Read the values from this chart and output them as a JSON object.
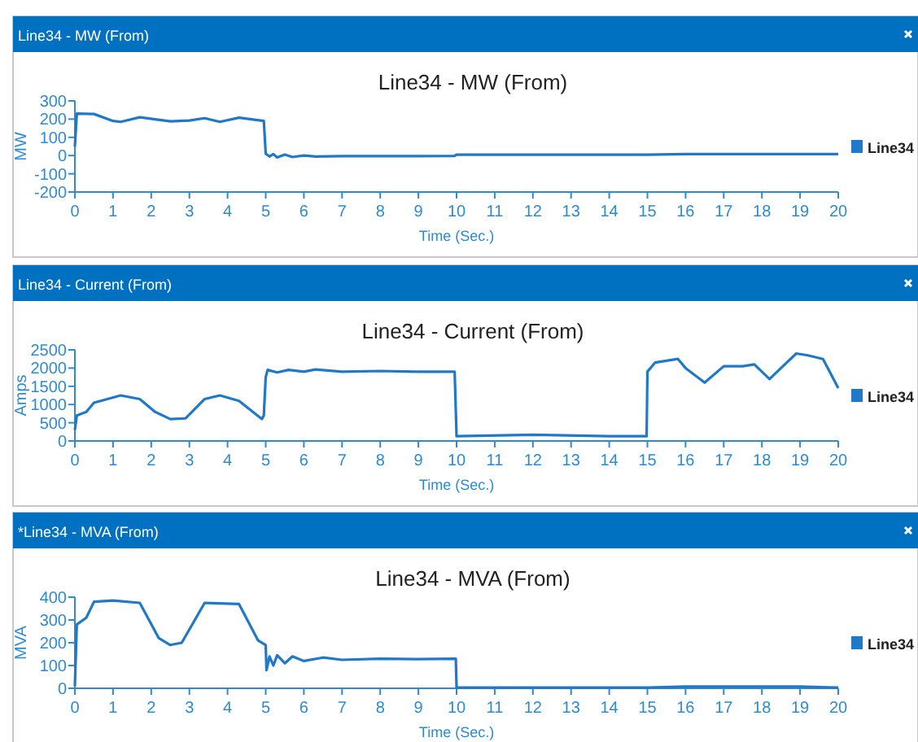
{
  "chart_data": [
    {
      "type": "line",
      "subtitle": "Line34 - MW (From)",
      "title": "Line34 - MW (From)",
      "xlabel": "Time (Sec.)",
      "ylabel": "MW",
      "xlim": [
        0,
        20
      ],
      "xticks": [
        0,
        1,
        2,
        3,
        4,
        5,
        6,
        7,
        8,
        9,
        10,
        11,
        12,
        13,
        14,
        15,
        16,
        17,
        18,
        19,
        20
      ],
      "ylim": [
        -200,
        300
      ],
      "yticks": [
        -200,
        -100,
        0,
        100,
        200,
        300
      ],
      "grid": false,
      "legend": "right",
      "marker": "none",
      "line_style": "solid",
      "series": [
        {
          "name": "Line34",
          "color": "#1f78c8",
          "x": [
            0,
            0.05,
            0.5,
            1,
            1.2,
            1.7,
            2.5,
            3,
            3.4,
            3.8,
            4.3,
            4.95,
            5,
            5.1,
            5.2,
            5.3,
            5.5,
            5.7,
            6,
            6.3,
            7,
            8,
            9,
            9.95,
            10,
            15,
            16,
            20
          ],
          "values": [
            50,
            230,
            228,
            190,
            185,
            210,
            188,
            192,
            205,
            185,
            208,
            190,
            10,
            -5,
            8,
            -10,
            5,
            -8,
            0,
            -5,
            -3,
            -3,
            -3,
            -2,
            5,
            5,
            8,
            8
          ]
        }
      ]
    },
    {
      "type": "line",
      "subtitle": "Line34 - Current (From)",
      "title": "Line34 - Current (From)",
      "xlabel": "Time (Sec.)",
      "ylabel": "Amps",
      "xlim": [
        0,
        20
      ],
      "xticks": [
        0,
        1,
        2,
        3,
        4,
        5,
        6,
        7,
        8,
        9,
        10,
        11,
        12,
        13,
        14,
        15,
        16,
        17,
        18,
        19,
        20
      ],
      "ylim": [
        0,
        2500
      ],
      "yticks": [
        0,
        500,
        1000,
        1500,
        2000,
        2500
      ],
      "grid": false,
      "legend": "right",
      "marker": "none",
      "line_style": "solid",
      "series": [
        {
          "name": "Line34",
          "color": "#1f78c8",
          "x": [
            0,
            0.05,
            0.3,
            0.5,
            1.2,
            1.7,
            2.1,
            2.5,
            2.9,
            3.4,
            3.8,
            4.3,
            4.9,
            4.95,
            5,
            5.05,
            5.3,
            5.6,
            6,
            6.3,
            7,
            8,
            9,
            9.95,
            10,
            12,
            14,
            14.98,
            15,
            15.2,
            15.5,
            15.8,
            16,
            16.5,
            17,
            17.5,
            17.8,
            18.2,
            18.5,
            18.9,
            19.2,
            19.6,
            20
          ],
          "values": [
            300,
            700,
            800,
            1050,
            1250,
            1150,
            800,
            600,
            620,
            1150,
            1250,
            1100,
            600,
            700,
            1750,
            1950,
            1880,
            1950,
            1900,
            1960,
            1900,
            1920,
            1900,
            1900,
            130,
            170,
            130,
            130,
            1900,
            2150,
            2200,
            2250,
            2000,
            1600,
            2050,
            2050,
            2100,
            1700,
            2000,
            2400,
            2350,
            2250,
            1450
          ]
        }
      ]
    },
    {
      "type": "line",
      "subtitle": "*Line34 - MVA (From)",
      "title": "Line34 - MVA (From)",
      "xlabel": "Time (Sec.)",
      "ylabel": "MVA",
      "xlim": [
        0,
        20
      ],
      "xticks": [
        0,
        1,
        2,
        3,
        4,
        5,
        6,
        7,
        8,
        9,
        10,
        11,
        12,
        13,
        14,
        15,
        16,
        17,
        18,
        19,
        20
      ],
      "ylim": [
        0,
        400
      ],
      "yticks": [
        0,
        100,
        200,
        300,
        400
      ],
      "grid": false,
      "legend": "right",
      "marker": "none",
      "line_style": "solid",
      "series": [
        {
          "name": "Line34",
          "color": "#1f78c8",
          "x": [
            0,
            0.05,
            0.3,
            0.5,
            1,
            1.7,
            2.2,
            2.5,
            2.8,
            3.4,
            4.3,
            4.8,
            5,
            5.02,
            5.1,
            5.2,
            5.3,
            5.5,
            5.7,
            6,
            6.5,
            7,
            8,
            9,
            9.98,
            10,
            15,
            16,
            19,
            20
          ],
          "values": [
            10,
            280,
            310,
            380,
            385,
            375,
            220,
            190,
            200,
            375,
            370,
            210,
            190,
            80,
            140,
            100,
            145,
            110,
            140,
            120,
            135,
            125,
            130,
            128,
            130,
            3,
            3,
            8,
            8,
            3
          ]
        }
      ]
    }
  ]
}
